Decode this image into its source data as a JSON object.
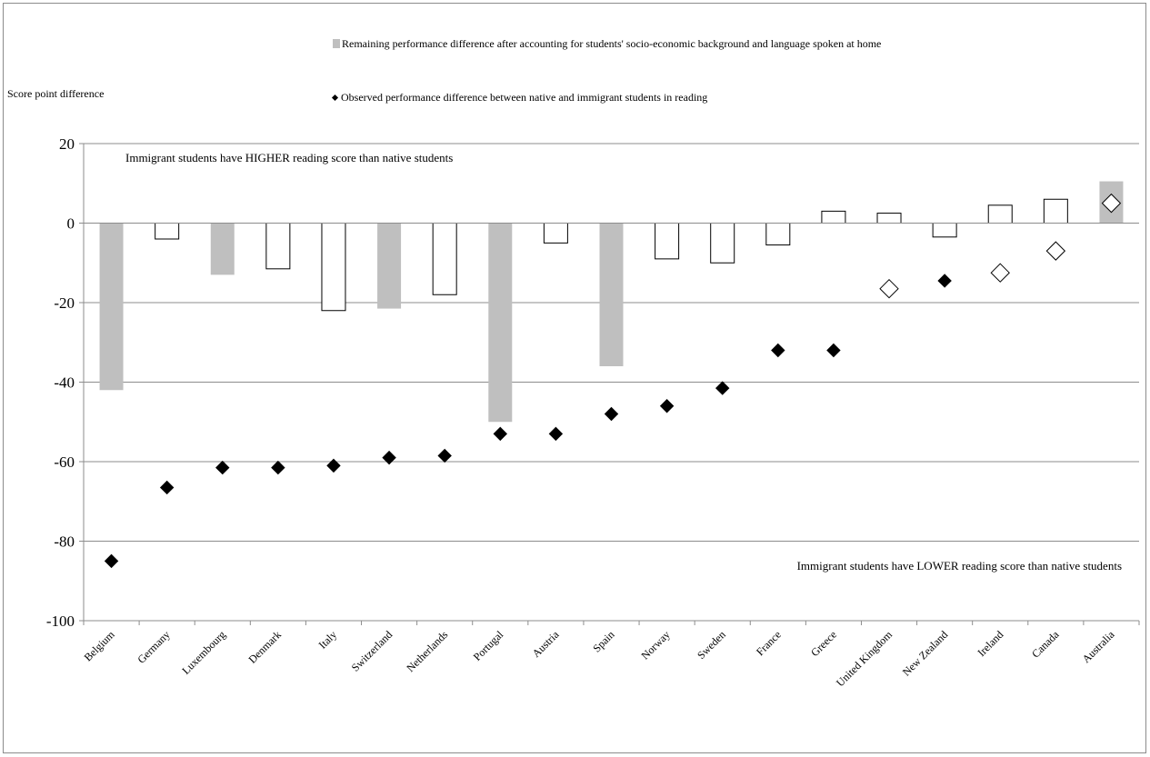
{
  "chart_data": {
    "type": "bar",
    "title": "",
    "ylabel": "Score point difference",
    "ylim": [
      -100,
      20
    ],
    "yticks": [
      20,
      0,
      -20,
      -40,
      -60,
      -80,
      -100
    ],
    "grid": true,
    "legend_placement": "top",
    "categories": [
      "Belgium",
      "Germany",
      "Luxembourg",
      "Denmark",
      "Italy",
      "Switzerland",
      "Netherlands",
      "Portugal",
      "Austria",
      "Spain",
      "Norway",
      "Sweden",
      "France",
      "Greece",
      "United Kingdom",
      "New Zealand",
      "Ireland",
      "Canada",
      "Australia"
    ],
    "series": [
      {
        "name": "Remaining performance difference after accounting for students' socio-economic background and language spoken at home",
        "kind": "bar",
        "values": [
          -42,
          -4,
          -13,
          -11.5,
          -22,
          -21.5,
          -18,
          -50,
          -5,
          -36,
          -9,
          -10,
          -5.5,
          3,
          2.5,
          -3.5,
          4.5,
          6,
          10.5
        ],
        "significant": [
          true,
          false,
          true,
          false,
          false,
          true,
          false,
          true,
          false,
          true,
          false,
          false,
          false,
          false,
          false,
          false,
          false,
          false,
          true
        ]
      },
      {
        "name": "Observed performance difference between native and immigrant students in reading",
        "kind": "marker",
        "values": [
          -85,
          -66.5,
          -61.5,
          -61.5,
          -61,
          -59,
          -58.5,
          -53,
          -53,
          -48,
          -46,
          -41.5,
          -32,
          -32,
          -16.5,
          -14.5,
          -12.5,
          -7,
          5
        ],
        "significant": [
          true,
          true,
          true,
          true,
          true,
          true,
          true,
          true,
          true,
          true,
          true,
          true,
          true,
          true,
          false,
          true,
          false,
          false,
          false
        ]
      }
    ],
    "annotations": {
      "higher": "Immigrant students have HIGHER reading score than native students",
      "lower": "Immigrant students have LOWER reading score than native students"
    },
    "colors": {
      "significant_bar": "#bfbfbf",
      "significant_marker": "#000000",
      "non_significant_fill": "#ffffff",
      "outline": "#000000",
      "gridline": "#8c8c8c"
    }
  }
}
